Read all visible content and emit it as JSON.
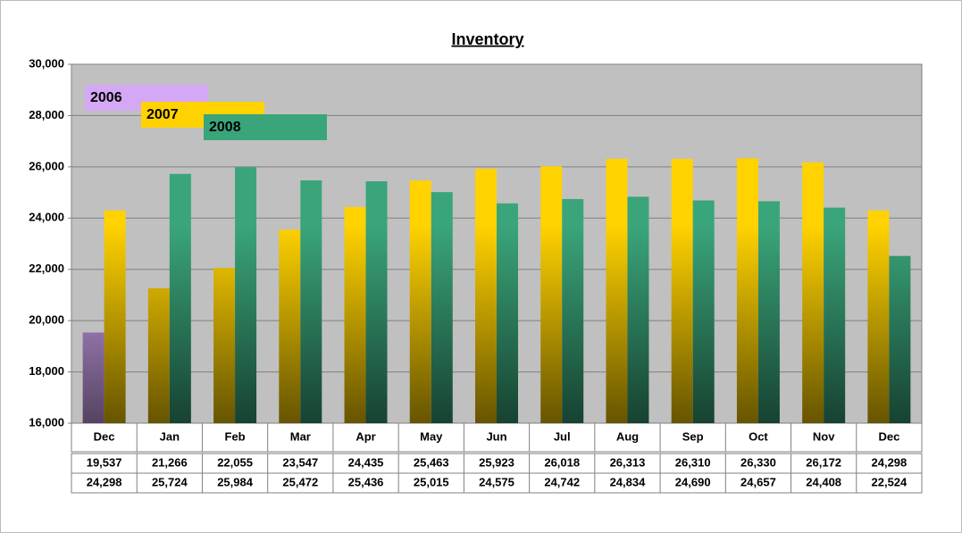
{
  "chart_data": {
    "type": "bar",
    "title": "Inventory",
    "categories": [
      "Dec",
      "Jan",
      "Feb",
      "Mar",
      "Apr",
      "May",
      "Jun",
      "Jul",
      "Aug",
      "Sep",
      "Oct",
      "Nov",
      "Dec"
    ],
    "series": [
      {
        "values": [
          19537,
          21266,
          22055,
          23547,
          24435,
          25463,
          25923,
          26018,
          26313,
          26310,
          26330,
          26172,
          24298
        ],
        "value_labels": [
          "19,537",
          "21,266",
          "22,055",
          "23,547",
          "24,435",
          "25,463",
          "25,923",
          "26,018",
          "26,313",
          "26,310",
          "26,330",
          "26,172",
          "24,298"
        ],
        "colors": [
          "#d4a8f5",
          "#ffd200",
          "#ffd200",
          "#ffd200",
          "#ffd200",
          "#ffd200",
          "#ffd200",
          "#ffd200",
          "#ffd200",
          "#ffd200",
          "#ffd200",
          "#ffd200",
          "#ffd200"
        ]
      },
      {
        "values": [
          24298,
          25724,
          25984,
          25472,
          25436,
          25015,
          24575,
          24742,
          24834,
          24690,
          24657,
          24408,
          22524
        ],
        "value_labels": [
          "24,298",
          "25,724",
          "25,984",
          "25,472",
          "25,436",
          "25,015",
          "24,575",
          "24,742",
          "24,834",
          "24,690",
          "24,657",
          "24,408",
          "22,524"
        ],
        "colors": [
          "#ffd200",
          "#3aa57a",
          "#3aa57a",
          "#3aa57a",
          "#3aa57a",
          "#3aa57a",
          "#3aa57a",
          "#3aa57a",
          "#3aa57a",
          "#3aa57a",
          "#3aa57a",
          "#3aa57a",
          "#3aa57a"
        ]
      }
    ],
    "legend": [
      {
        "name": "2006",
        "color": "#d4a8f5"
      },
      {
        "name": "2007",
        "color": "#ffd200"
      },
      {
        "name": "2008",
        "color": "#3aa57a"
      }
    ],
    "ylim": [
      16000,
      30000
    ],
    "yticks": [
      {
        "value": 16000,
        "label": "16,000"
      },
      {
        "value": 18000,
        "label": "18,000"
      },
      {
        "value": 20000,
        "label": "20,000"
      },
      {
        "value": 22000,
        "label": "22,000"
      },
      {
        "value": 24000,
        "label": "24,000"
      },
      {
        "value": 26000,
        "label": "26,000"
      },
      {
        "value": 28000,
        "label": "28,000"
      },
      {
        "value": 30000,
        "label": "30,000"
      }
    ],
    "grid": true
  }
}
